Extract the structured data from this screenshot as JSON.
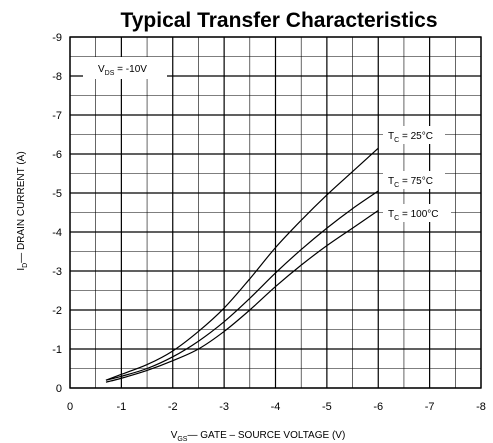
{
  "chart_data": {
    "type": "line",
    "title": "Typical Transfer Characteristics",
    "xlabel_main": "V",
    "xlabel_sub": "GS",
    "xlabel_rest": "— GATE – SOURCE VOLTAGE  (V)",
    "ylabel_main": "I",
    "ylabel_sub": "D",
    "ylabel_rest": "— DRAIN CURRENT  (A)",
    "x_ticks": [
      "0",
      "-1",
      "-2",
      "-3",
      "-4",
      "-5",
      "-6",
      "-7",
      "-8"
    ],
    "y_ticks": [
      "0",
      "-1",
      "-2",
      "-3",
      "-4",
      "-5",
      "-6",
      "-7",
      "-8",
      "-9"
    ],
    "xlim": [
      0,
      -8
    ],
    "ylim": [
      0,
      -9
    ],
    "grid": true,
    "annotation": {
      "main": "V",
      "sub": "DS",
      "rest": " = -10V"
    },
    "series": [
      {
        "name_main": "T",
        "name_sub": "C",
        "name_rest": " = 25°C",
        "x": [
          -0.7,
          -1.0,
          -1.5,
          -2.0,
          -2.5,
          -3.0,
          -3.5,
          -4.0,
          -4.5,
          -5.0,
          -5.5,
          -6.0
        ],
        "y": [
          -0.2,
          -0.35,
          -0.6,
          -0.95,
          -1.45,
          -2.05,
          -2.8,
          -3.6,
          -4.3,
          -4.95,
          -5.55,
          -6.15
        ]
      },
      {
        "name_main": "T",
        "name_sub": "C",
        "name_rest": " = 75°C",
        "x": [
          -0.7,
          -1.0,
          -1.5,
          -2.0,
          -2.5,
          -3.0,
          -3.5,
          -4.0,
          -4.5,
          -5.0,
          -5.5,
          -6.0
        ],
        "y": [
          -0.2,
          -0.3,
          -0.5,
          -0.8,
          -1.2,
          -1.7,
          -2.3,
          -2.95,
          -3.55,
          -4.1,
          -4.6,
          -5.05
        ]
      },
      {
        "name_main": "T",
        "name_sub": "C",
        "name_rest": " = 100°C",
        "x": [
          -0.7,
          -1.0,
          -1.5,
          -2.0,
          -2.5,
          -3.0,
          -3.5,
          -4.0,
          -4.5,
          -5.0,
          -5.5,
          -6.0
        ],
        "y": [
          -0.15,
          -0.25,
          -0.45,
          -0.7,
          -1.0,
          -1.45,
          -2.0,
          -2.6,
          -3.15,
          -3.65,
          -4.1,
          -4.55
        ]
      }
    ]
  }
}
